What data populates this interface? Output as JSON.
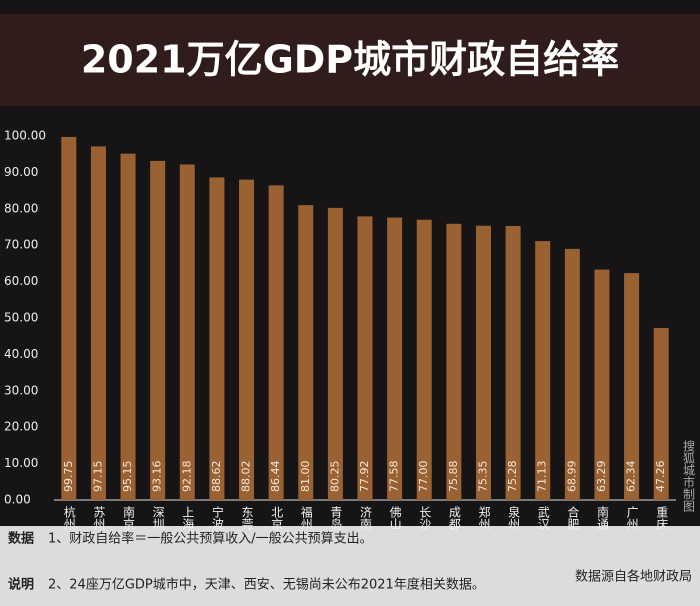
{
  "chart_data": {
    "type": "bar",
    "title": "2021万亿GDP城市财政自给率",
    "categories": [
      "杭州",
      "苏州",
      "南京",
      "深圳",
      "上海",
      "宁波",
      "东莞",
      "北京",
      "福州",
      "青岛",
      "济南",
      "佛山",
      "长沙",
      "成都",
      "郑州",
      "泉州",
      "武汉",
      "合肥",
      "南通",
      "广州",
      "重庆"
    ],
    "values": [
      99.75,
      97.15,
      95.15,
      93.16,
      92.18,
      88.62,
      88.02,
      86.44,
      81.0,
      80.25,
      77.92,
      77.58,
      77.0,
      75.88,
      75.35,
      75.28,
      71.13,
      68.99,
      63.29,
      62.34,
      47.26
    ],
    "value_labels": [
      "99.75",
      "97.15",
      "95.15",
      "93.16",
      "92.18",
      "88.62",
      "88.02",
      "86.44",
      "81.00",
      "80.25",
      "77.92",
      "77.58",
      "77.00",
      "75.88",
      "75.35",
      "75.28",
      "71.13",
      "68.99",
      "63.29",
      "62.34",
      "47.26"
    ],
    "color": "#9a6233",
    "ylim": [
      0,
      100
    ],
    "yticks": [
      {
        "value": 0,
        "label": "0.00"
      },
      {
        "value": 10,
        "label": "10.00"
      },
      {
        "value": 20,
        "label": "20.00"
      },
      {
        "value": 30,
        "label": "30.00"
      },
      {
        "value": 40,
        "label": "40.00"
      },
      {
        "value": 50,
        "label": "50.00"
      },
      {
        "value": 60,
        "label": "60.00"
      },
      {
        "value": 70,
        "label": "70.00"
      },
      {
        "value": 80,
        "label": "80.00"
      },
      {
        "value": 90,
        "label": "90.00"
      },
      {
        "value": 100,
        "label": "100.00"
      }
    ],
    "grid": false,
    "watermark": "搜狐城市制图",
    "notes": [
      {
        "label": "数据",
        "text": "1、财政自给率＝一般公共预算收入/一般公共预算支出。"
      },
      {
        "label": "说明",
        "text": "2、24座万亿GDP城市中，天津、西安、无锡尚未公布2021年度相关数据。"
      }
    ],
    "source": "数据源自各地财政局"
  }
}
